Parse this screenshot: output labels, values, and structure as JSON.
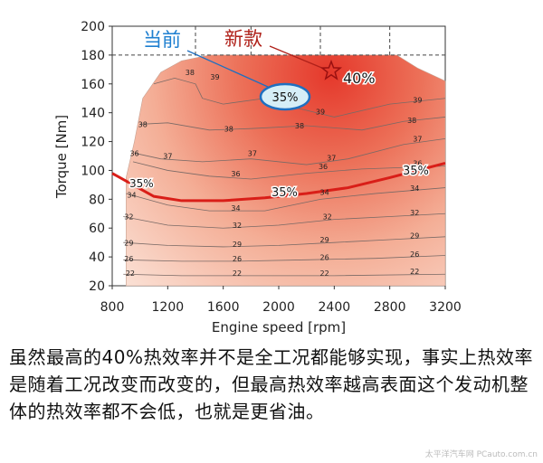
{
  "chart_data": {
    "type": "contour",
    "title": "",
    "xlabel": "Engine speed [rpm]",
    "ylabel": "Torque [Nm]",
    "xlim": [
      800,
      3200
    ],
    "ylim": [
      20,
      200
    ],
    "xticks": [
      800,
      1200,
      1600,
      2000,
      2400,
      2800,
      3200
    ],
    "yticks": [
      20,
      40,
      60,
      80,
      100,
      120,
      140,
      160,
      180,
      200
    ],
    "max_torque_curve": [
      [
        900,
        95
      ],
      [
        960,
        120
      ],
      [
        1020,
        150
      ],
      [
        1150,
        168
      ],
      [
        1300,
        176
      ],
      [
        1500,
        180
      ],
      [
        2700,
        180
      ],
      [
        2850,
        180
      ],
      [
        3000,
        171
      ],
      [
        3200,
        162
      ]
    ],
    "contour_labels": [
      {
        "value": "38",
        "x": 1360,
        "y": 166
      },
      {
        "value": "39",
        "x": 1540,
        "y": 163
      },
      {
        "value": "39",
        "x": 2300,
        "y": 139
      },
      {
        "value": "39",
        "x": 3000,
        "y": 147
      },
      {
        "value": "38",
        "x": 2960,
        "y": 133
      },
      {
        "value": "38",
        "x": 1020,
        "y": 130
      },
      {
        "value": "38",
        "x": 1640,
        "y": 127
      },
      {
        "value": "38",
        "x": 2150,
        "y": 129
      },
      {
        "value": "37",
        "x": 1200,
        "y": 108
      },
      {
        "value": "37",
        "x": 1810,
        "y": 110
      },
      {
        "value": "37",
        "x": 2380,
        "y": 107
      },
      {
        "value": "37",
        "x": 3000,
        "y": 120
      },
      {
        "value": "36",
        "x": 960,
        "y": 110
      },
      {
        "value": "36",
        "x": 1690,
        "y": 96
      },
      {
        "value": "36",
        "x": 2320,
        "y": 101
      },
      {
        "value": "36",
        "x": 3000,
        "y": 103
      },
      {
        "value": "34",
        "x": 940,
        "y": 81
      },
      {
        "value": "34",
        "x": 1690,
        "y": 72
      },
      {
        "value": "34",
        "x": 2330,
        "y": 83
      },
      {
        "value": "34",
        "x": 2980,
        "y": 86
      },
      {
        "value": "32",
        "x": 920,
        "y": 66
      },
      {
        "value": "32",
        "x": 1700,
        "y": 60
      },
      {
        "value": "32",
        "x": 2350,
        "y": 66
      },
      {
        "value": "32",
        "x": 2980,
        "y": 69
      },
      {
        "value": "29",
        "x": 920,
        "y": 48
      },
      {
        "value": "29",
        "x": 1700,
        "y": 47
      },
      {
        "value": "29",
        "x": 2330,
        "y": 50
      },
      {
        "value": "29",
        "x": 2980,
        "y": 53
      },
      {
        "value": "26",
        "x": 920,
        "y": 37
      },
      {
        "value": "26",
        "x": 1700,
        "y": 37
      },
      {
        "value": "26",
        "x": 2330,
        "y": 38
      },
      {
        "value": "26",
        "x": 2980,
        "y": 40
      },
      {
        "value": "22",
        "x": 930,
        "y": 27
      },
      {
        "value": "22",
        "x": 1700,
        "y": 27
      },
      {
        "value": "22",
        "x": 2330,
        "y": 27
      },
      {
        "value": "22",
        "x": 2980,
        "y": 28
      }
    ],
    "series": [
      {
        "name": "35% efficiency contour",
        "label": "35%",
        "points": [
          [
            800,
            98
          ],
          [
            950,
            90
          ],
          [
            1100,
            82
          ],
          [
            1300,
            79
          ],
          [
            1600,
            79
          ],
          [
            1900,
            81
          ],
          [
            2200,
            84
          ],
          [
            2500,
            88
          ],
          [
            2800,
            95
          ],
          [
            3000,
            100
          ],
          [
            3200,
            105
          ]
        ]
      }
    ],
    "annotations": {
      "current_label": "当前",
      "current_island": "35%",
      "new_label": "新款",
      "new_peak": "40%",
      "curve_label_left": "35%",
      "curve_label_mid": "35%",
      "curve_label_right": "35%"
    },
    "colors": {
      "curve": "#d91e18",
      "current": "#1e7fd0",
      "new": "#b0211a",
      "island_fill": "#d6eef7",
      "island_stroke": "#1f6fc0"
    }
  },
  "caption": "虽然最高的40%热效率并不是全工况都能够实现，事实上热效率是随着工况改变而改变的，但最高热效率越高表面这个发动机整体的热效率都不会低，也就是更省油。",
  "watermark": "太平洋汽车网 PCauto.com.cn"
}
